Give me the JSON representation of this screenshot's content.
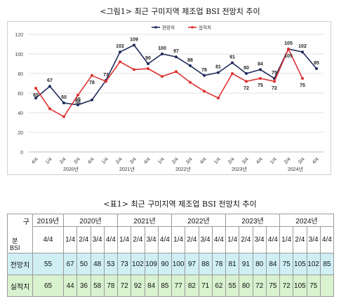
{
  "figure_title": "<그림1> 최근 구미지역 제조업 BSI 전망치 추이",
  "table_title": "<표1> 최근 구미지역 제조업 BSI 전망치 추이",
  "chart_data": {
    "type": "line",
    "categories": [
      "4/4",
      "1/4",
      "2/4",
      "3/4",
      "4/4",
      "1/4",
      "2/4",
      "3/4",
      "4/4",
      "1/4",
      "2/4",
      "3/4",
      "4/4",
      "1/4",
      "2/4",
      "3/4",
      "4/4",
      "1/4",
      "2/4",
      "3/4",
      "4/4"
    ],
    "year_groups": [
      {
        "label": "2020년",
        "start": 1,
        "end": 4
      },
      {
        "label": "2021년",
        "start": 5,
        "end": 8
      },
      {
        "label": "2022년",
        "start": 9,
        "end": 12
      },
      {
        "label": "2023년",
        "start": 13,
        "end": 16
      },
      {
        "label": "2024년",
        "start": 17,
        "end": 20
      }
    ],
    "series": [
      {
        "name": "전망치",
        "color": "#1f2a5c",
        "values": [
          55,
          67,
          50,
          48,
          53,
          73,
          102,
          109,
          90,
          100,
          97,
          88,
          78,
          81,
          91,
          80,
          84,
          75,
          105,
          102,
          85
        ],
        "labels": [
          null,
          67,
          50,
          48,
          null,
          73,
          102,
          109,
          90,
          100,
          97,
          88,
          78,
          81,
          91,
          80,
          84,
          75,
          105,
          102,
          85
        ]
      },
      {
        "name": "실적치",
        "color": "#e03131",
        "values": [
          65,
          44,
          36,
          58,
          78,
          72,
          92,
          84,
          85,
          77,
          82,
          71,
          62,
          55,
          80,
          72,
          75,
          72,
          105,
          75,
          null
        ],
        "labels": [
          65,
          null,
          null,
          58,
          78,
          null,
          null,
          null,
          null,
          null,
          null,
          null,
          null,
          null,
          null,
          72,
          75,
          72,
          105,
          75,
          null
        ]
      }
    ],
    "yticks": [
      0,
      20,
      40,
      60,
      80,
      100,
      120
    ],
    "ylim": [
      0,
      120
    ],
    "grid": true,
    "legend": "top-center"
  },
  "table": {
    "corner_top": "구",
    "corner_bottom": "분\nBSI",
    "years": [
      {
        "label": "2019년",
        "span": 1
      },
      {
        "label": "2020년",
        "span": 4
      },
      {
        "label": "2021년",
        "span": 4
      },
      {
        "label": "2022년",
        "span": 4
      },
      {
        "label": "2023년",
        "span": 4
      },
      {
        "label": "2024년",
        "span": 4
      }
    ],
    "quarters": [
      "4/4",
      "1/4",
      "2/4",
      "3/4",
      "4/4",
      "1/4",
      "2/4",
      "3/4",
      "4/4",
      "1/4",
      "2/4",
      "3/4",
      "4/4",
      "1/4",
      "2/4",
      "3/4",
      "4/4",
      "1/4",
      "2/4",
      "3/4",
      "4/4"
    ],
    "rows": [
      {
        "label": "전망치",
        "values": [
          "55",
          "67",
          "50",
          "48",
          "53",
          "73",
          "102",
          "109",
          "90",
          "100",
          "97",
          "88",
          "78",
          "81",
          "91",
          "80",
          "84",
          "75",
          "105",
          "102",
          "85"
        ]
      },
      {
        "label": "실적치",
        "values": [
          "65",
          "44",
          "36",
          "58",
          "78",
          "72",
          "92",
          "84",
          "85",
          "77",
          "82",
          "71",
          "62",
          "55",
          "80",
          "72",
          "75",
          "72",
          "105",
          "75",
          ""
        ]
      }
    ]
  }
}
